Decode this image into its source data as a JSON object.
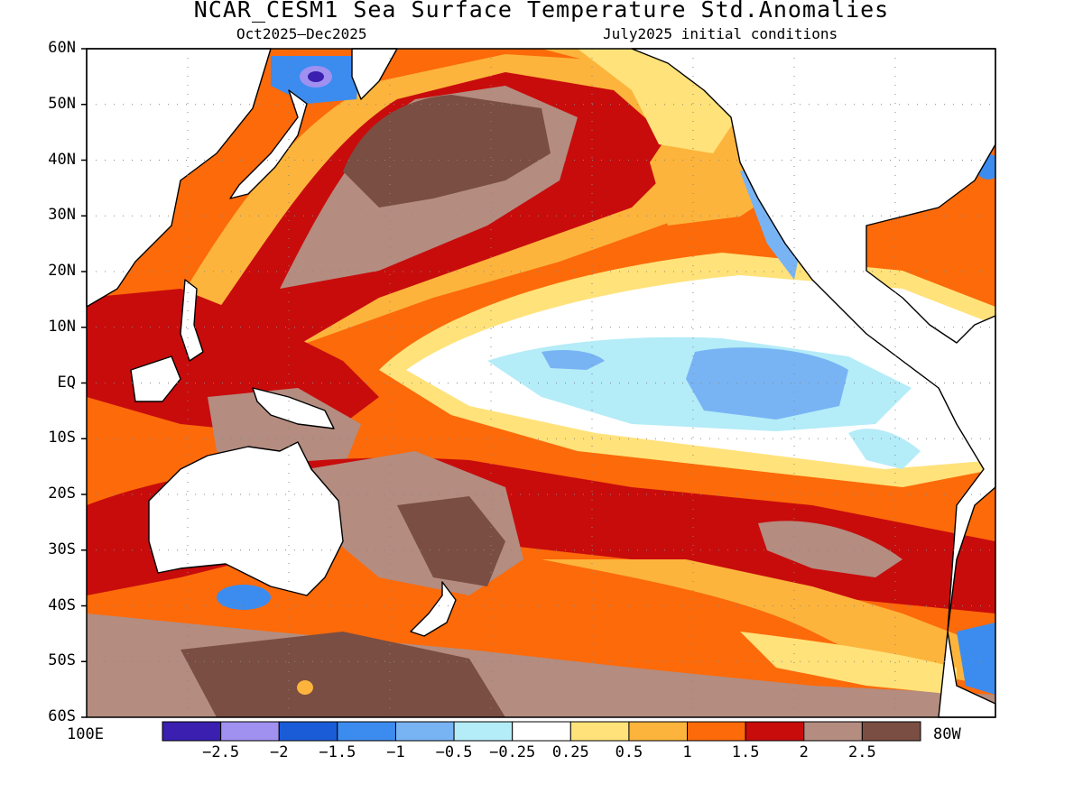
{
  "title": "NCAR_CESM1 Sea Surface Temperature Std.Anomalies",
  "subtitle_left": "Oct2025–Dec2025",
  "subtitle_right": "July2025 initial conditions",
  "lat_labels": [
    "60N",
    "50N",
    "40N",
    "30N",
    "20N",
    "10N",
    "EQ",
    "10S",
    "20S",
    "30S",
    "40S",
    "50S",
    "60S"
  ],
  "lon_labels": {
    "left": "100E",
    "right": "80W"
  },
  "colorbar": {
    "colors": [
      "#3a1fb0",
      "#a090f0",
      "#1a5cd8",
      "#3c8cf0",
      "#78b4f4",
      "#b4ecf8",
      "#ffffff",
      "#ffe27a",
      "#fcb43c",
      "#fc6a0a",
      "#c80c0c",
      "#b48c80",
      "#7a4e42"
    ],
    "labels": [
      "−2.5",
      "−2",
      "−1.5",
      "−1",
      "−0.5",
      "−0.25",
      "0.25",
      "0.5",
      "1",
      "1.5",
      "2",
      "2.5"
    ]
  },
  "legend_colors": {
    "white": "#ffffff",
    "light_yellow": "#ffe27a",
    "orange_light": "#fcb43c",
    "orange": "#fc6a0a",
    "red": "#c80c0c",
    "taupe": "#b48c80",
    "brown": "#7a4e42",
    "cyan": "#b4ecf8",
    "light_blue": "#78b4f4",
    "blue": "#3c8cf0",
    "purple": "#a090f0"
  }
}
